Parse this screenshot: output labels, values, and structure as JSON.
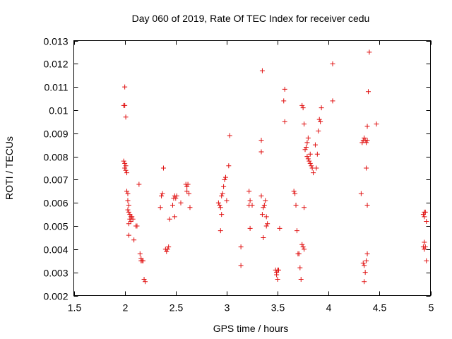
{
  "chart_data": {
    "type": "scatter",
    "title": "Day 060 of 2019, Rate Of TEC Index for receiver cedu",
    "xlabel": "GPS time / hours",
    "ylabel": "ROTI / TECUs",
    "xlim": [
      1.5,
      5.0
    ],
    "ylim": [
      0.002,
      0.013
    ],
    "x_ticks": [
      1.5,
      2.0,
      2.5,
      3.0,
      3.5,
      4.0,
      4.5,
      5.0
    ],
    "x_tick_labels": [
      "1.5",
      "2",
      "2.5",
      "3",
      "3.5",
      "4",
      "4.5",
      "5"
    ],
    "y_ticks": [
      0.002,
      0.003,
      0.004,
      0.005,
      0.006,
      0.007,
      0.008,
      0.009,
      0.01,
      0.011,
      0.012,
      0.013
    ],
    "y_tick_labels": [
      "0.002",
      "0.003",
      "0.004",
      "0.005",
      "0.006",
      "0.007",
      "0.008",
      "0.009",
      "0.01",
      "0.011",
      "0.012",
      "0.013"
    ],
    "marker": "plus",
    "color": "#e01010",
    "series": [
      {
        "name": "ROTI",
        "points": [
          [
            2.0,
            0.011
          ],
          [
            1.99,
            0.0102
          ],
          [
            2.0,
            0.0102
          ],
          [
            2.01,
            0.0097
          ],
          [
            1.99,
            0.0078
          ],
          [
            2.0,
            0.0077
          ],
          [
            2.01,
            0.0076
          ],
          [
            2.0,
            0.0075
          ],
          [
            2.01,
            0.0074
          ],
          [
            2.02,
            0.0073
          ],
          [
            2.02,
            0.0065
          ],
          [
            2.03,
            0.0064
          ],
          [
            2.03,
            0.0061
          ],
          [
            2.04,
            0.0059
          ],
          [
            2.03,
            0.0057
          ],
          [
            2.04,
            0.0056
          ],
          [
            2.05,
            0.0055
          ],
          [
            2.06,
            0.0054
          ],
          [
            2.07,
            0.0054
          ],
          [
            2.08,
            0.0053
          ],
          [
            2.05,
            0.0053
          ],
          [
            2.06,
            0.0052
          ],
          [
            2.04,
            0.0051
          ],
          [
            2.11,
            0.005
          ],
          [
            2.12,
            0.005
          ],
          [
            2.04,
            0.0046
          ],
          [
            2.09,
            0.0044
          ],
          [
            2.14,
            0.0068
          ],
          [
            2.15,
            0.0038
          ],
          [
            2.16,
            0.0036
          ],
          [
            2.17,
            0.0035
          ],
          [
            2.18,
            0.0035
          ],
          [
            2.16,
            0.0035
          ],
          [
            2.19,
            0.0027
          ],
          [
            2.2,
            0.0026
          ],
          [
            2.38,
            0.0075
          ],
          [
            2.36,
            0.0063
          ],
          [
            2.37,
            0.0064
          ],
          [
            2.35,
            0.0058
          ],
          [
            2.4,
            0.004
          ],
          [
            2.41,
            0.0039
          ],
          [
            2.42,
            0.004
          ],
          [
            2.43,
            0.0041
          ],
          [
            2.44,
            0.0053
          ],
          [
            2.48,
            0.0062
          ],
          [
            2.49,
            0.0063
          ],
          [
            2.5,
            0.0062
          ],
          [
            2.51,
            0.0063
          ],
          [
            2.47,
            0.0059
          ],
          [
            2.49,
            0.0054
          ],
          [
            2.55,
            0.006
          ],
          [
            2.6,
            0.0068
          ],
          [
            2.61,
            0.0067
          ],
          [
            2.62,
            0.0068
          ],
          [
            2.61,
            0.0065
          ],
          [
            2.63,
            0.0064
          ],
          [
            2.64,
            0.0058
          ],
          [
            2.92,
            0.006
          ],
          [
            2.93,
            0.0059
          ],
          [
            2.94,
            0.0058
          ],
          [
            2.95,
            0.0063
          ],
          [
            2.96,
            0.0064
          ],
          [
            2.97,
            0.0067
          ],
          [
            2.98,
            0.007
          ],
          [
            2.99,
            0.0071
          ],
          [
            2.95,
            0.0055
          ],
          [
            2.94,
            0.0048
          ],
          [
            3.03,
            0.0089
          ],
          [
            3.02,
            0.0076
          ],
          [
            3.0,
            0.0061
          ],
          [
            3.14,
            0.0041
          ],
          [
            3.14,
            0.0033
          ],
          [
            3.22,
            0.0065
          ],
          [
            3.22,
            0.0059
          ],
          [
            3.23,
            0.0061
          ],
          [
            3.25,
            0.0059
          ],
          [
            3.23,
            0.0049
          ],
          [
            3.35,
            0.0117
          ],
          [
            3.34,
            0.0087
          ],
          [
            3.34,
            0.0082
          ],
          [
            3.34,
            0.0063
          ],
          [
            3.36,
            0.0058
          ],
          [
            3.37,
            0.0059
          ],
          [
            3.38,
            0.0061
          ],
          [
            3.35,
            0.0055
          ],
          [
            3.39,
            0.0054
          ],
          [
            3.4,
            0.0051
          ],
          [
            3.39,
            0.005
          ],
          [
            3.36,
            0.0045
          ],
          [
            3.48,
            0.0031
          ],
          [
            3.49,
            0.003
          ],
          [
            3.5,
            0.0031
          ],
          [
            3.51,
            0.0031
          ],
          [
            3.49,
            0.0029
          ],
          [
            3.5,
            0.0027
          ],
          [
            3.52,
            0.0049
          ],
          [
            3.57,
            0.0109
          ],
          [
            3.56,
            0.0104
          ],
          [
            3.57,
            0.0095
          ],
          [
            3.66,
            0.0065
          ],
          [
            3.67,
            0.0064
          ],
          [
            3.68,
            0.0059
          ],
          [
            3.69,
            0.0048
          ],
          [
            3.7,
            0.0038
          ],
          [
            3.71,
            0.0038
          ],
          [
            3.72,
            0.0032
          ],
          [
            3.73,
            0.0027
          ],
          [
            3.74,
            0.0042
          ],
          [
            3.75,
            0.0041
          ],
          [
            3.76,
            0.004
          ],
          [
            3.76,
            0.0058
          ],
          [
            3.74,
            0.0102
          ],
          [
            3.75,
            0.0101
          ],
          [
            3.76,
            0.0094
          ],
          [
            3.77,
            0.0083
          ],
          [
            3.78,
            0.0084
          ],
          [
            3.79,
            0.0086
          ],
          [
            3.8,
            0.0088
          ],
          [
            3.79,
            0.008
          ],
          [
            3.8,
            0.0079
          ],
          [
            3.81,
            0.0078
          ],
          [
            3.82,
            0.0077
          ],
          [
            3.83,
            0.0076
          ],
          [
            3.84,
            0.0075
          ],
          [
            3.82,
            0.0081
          ],
          [
            3.85,
            0.0073
          ],
          [
            3.87,
            0.0085
          ],
          [
            3.88,
            0.0075
          ],
          [
            3.89,
            0.0081
          ],
          [
            3.9,
            0.0091
          ],
          [
            3.91,
            0.0096
          ],
          [
            3.92,
            0.0095
          ],
          [
            3.93,
            0.0101
          ],
          [
            4.04,
            0.012
          ],
          [
            4.04,
            0.0104
          ],
          [
            4.33,
            0.0086
          ],
          [
            4.34,
            0.0087
          ],
          [
            4.35,
            0.0088
          ],
          [
            4.36,
            0.0087
          ],
          [
            4.37,
            0.0086
          ],
          [
            4.38,
            0.0087
          ],
          [
            4.37,
            0.0075
          ],
          [
            4.32,
            0.0064
          ],
          [
            4.38,
            0.0093
          ],
          [
            4.39,
            0.0108
          ],
          [
            4.4,
            0.0125
          ],
          [
            4.47,
            0.0094
          ],
          [
            4.38,
            0.0059
          ],
          [
            4.38,
            0.0038
          ],
          [
            4.37,
            0.0035
          ],
          [
            4.34,
            0.0034
          ],
          [
            4.35,
            0.0033
          ],
          [
            4.36,
            0.003
          ],
          [
            4.35,
            0.0026
          ],
          [
            4.93,
            0.0055
          ],
          [
            4.94,
            0.0056
          ],
          [
            4.95,
            0.0056
          ],
          [
            4.94,
            0.0054
          ],
          [
            4.96,
            0.0052
          ],
          [
            4.94,
            0.0043
          ],
          [
            4.93,
            0.0041
          ],
          [
            4.94,
            0.004
          ],
          [
            4.95,
            0.0041
          ],
          [
            4.96,
            0.0035
          ]
        ]
      }
    ]
  }
}
